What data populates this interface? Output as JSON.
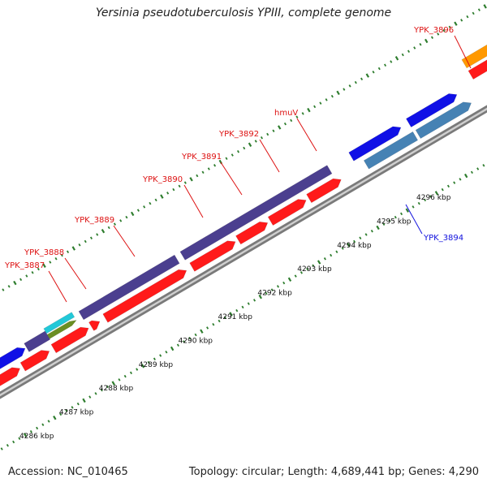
{
  "title": "Yersinia pseudotuberculosis YPIII, complete genome",
  "footer": {
    "accession": "Accession: NC_010465",
    "summary": "Topology: circular; Length: 4,689,441 bp; Genes: 4,290"
  },
  "scale_labels": [
    "4286 kbp",
    "4287 kbp",
    "4288 kbp",
    "4289 kbp",
    "4290 kbp",
    "4291 kbp",
    "4292 kbp",
    "4293 kbp",
    "4294 kbp",
    "4295 kbp",
    "4296 kbp"
  ],
  "gene_labels": [
    {
      "text": "YPK_3887",
      "color": "#dd1111"
    },
    {
      "text": "YPK_3888",
      "color": "#dd1111"
    },
    {
      "text": "YPK_3889",
      "color": "#dd1111"
    },
    {
      "text": "YPK_3890",
      "color": "#dd1111"
    },
    {
      "text": "YPK_3891",
      "color": "#dd1111"
    },
    {
      "text": "YPK_3892",
      "color": "#dd1111"
    },
    {
      "text": "hmuV",
      "color": "#dd1111"
    },
    {
      "text": "YPK_3894",
      "color": "#1111dd"
    },
    {
      "text": "YPK_3896",
      "color": "#dd1111"
    }
  ],
  "colors": {
    "cds_red": "#ff1a1a",
    "cds_purple": "#4b3f8f",
    "cds_blue": "#1010e6",
    "cds_steelblue": "#4682b4",
    "cds_orange": "#ff9900",
    "cds_cyan": "#22c8d8",
    "cds_olive": "#6b8e23",
    "backbone": "#7a7a7a",
    "tick_green": "#2e7d2e"
  }
}
